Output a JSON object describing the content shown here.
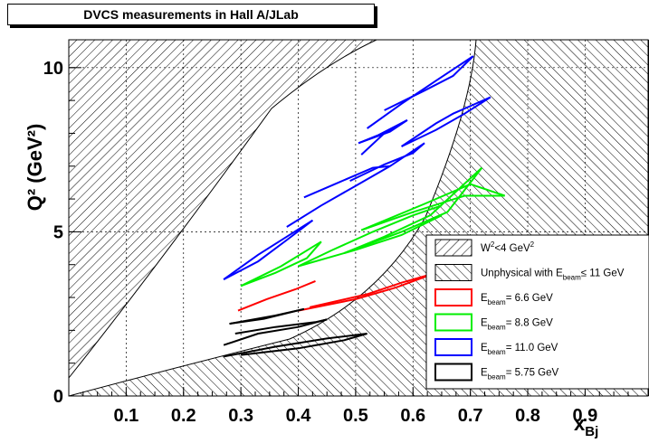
{
  "chart_data": {
    "type": "line",
    "title": "DVCS measurements in Hall A/JLab",
    "xlabel": "x_Bj",
    "ylabel": "Q² (GeV²)",
    "xlim": [
      0.0,
      1.0
    ],
    "ylim": [
      0,
      11
    ],
    "x_ticks": [
      "0.1",
      "0.2",
      "0.3",
      "0.4",
      "0.5",
      "0.6",
      "0.7",
      "0.8",
      "0.9"
    ],
    "y_ticks": [
      "0",
      "5",
      "10"
    ],
    "grid": true,
    "legend_position": "right",
    "legend": {
      "w2": {
        "main": "W",
        "sup": "2",
        "tail": "<4 GeV",
        "sup2": "2"
      },
      "unphys": {
        "main": "Unphysical with E",
        "sub": "beam",
        "tail": "≤ 11 GeV"
      },
      "series": [
        {
          "main": "E",
          "sub": "beam",
          "tail": "= 6.6 GeV",
          "color": "#ff0000"
        },
        {
          "main": "E",
          "sub": "beam",
          "tail": "= 8.8 GeV",
          "color": "#00ee00"
        },
        {
          "main": "E",
          "sub": "beam",
          "tail": "= 11.0 GeV",
          "color": "#0000ff"
        },
        {
          "main": "E",
          "sub": "beam",
          "tail": "= 5.75 GeV",
          "color": "#000000"
        }
      ]
    },
    "series": [
      {
        "color": "#ff0000",
        "segments": [
          [
            [
              0.295,
              2.6
            ],
            [
              0.345,
              2.95
            ],
            [
              0.395,
              3.25
            ],
            [
              0.43,
              3.5
            ]
          ],
          [
            [
              0.42,
              2.7
            ],
            [
              0.52,
              3.1
            ],
            [
              0.58,
              3.45
            ],
            [
              0.64,
              3.75
            ]
          ],
          [
            [
              0.4,
              2.6
            ],
            [
              0.5,
              2.95
            ],
            [
              0.57,
              3.3
            ],
            [
              0.64,
              3.75
            ]
          ]
        ]
      },
      {
        "color": "#00ee00",
        "segments": [
          [
            [
              0.3,
              3.35
            ],
            [
              0.36,
              3.75
            ],
            [
              0.415,
              4.2
            ],
            [
              0.44,
              4.7
            ]
          ],
          [
            [
              0.3,
              3.35
            ],
            [
              0.37,
              3.95
            ],
            [
              0.44,
              4.7
            ]
          ],
          [
            [
              0.4,
              3.95
            ],
            [
              0.46,
              4.45
            ],
            [
              0.53,
              5.0
            ],
            [
              0.6,
              5.5
            ],
            [
              0.65,
              5.8
            ]
          ],
          [
            [
              0.4,
              3.95
            ],
            [
              0.5,
              4.45
            ],
            [
              0.58,
              4.9
            ],
            [
              0.65,
              5.5
            ]
          ],
          [
            [
              0.48,
              4.35
            ],
            [
              0.55,
              4.85
            ],
            [
              0.63,
              5.5
            ],
            [
              0.72,
              6.95
            ]
          ],
          [
            [
              0.48,
              4.35
            ],
            [
              0.58,
              5.0
            ],
            [
              0.66,
              5.6
            ],
            [
              0.72,
              6.95
            ]
          ],
          [
            [
              0.51,
              5.05
            ],
            [
              0.6,
              5.6
            ],
            [
              0.69,
              6.1
            ],
            [
              0.76,
              6.1
            ]
          ],
          [
            [
              0.51,
              5.05
            ],
            [
              0.62,
              5.85
            ],
            [
              0.7,
              6.45
            ],
            [
              0.76,
              6.1
            ]
          ]
        ]
      },
      {
        "color": "#0000ff",
        "segments": [
          [
            [
              0.27,
              3.55
            ],
            [
              0.33,
              4.1
            ],
            [
              0.38,
              4.75
            ],
            [
              0.425,
              5.35
            ]
          ],
          [
            [
              0.27,
              3.55
            ],
            [
              0.33,
              4.3
            ],
            [
              0.38,
              4.85
            ],
            [
              0.425,
              5.35
            ]
          ],
          [
            [
              0.38,
              5.15
            ],
            [
              0.44,
              5.8
            ],
            [
              0.5,
              6.4
            ],
            [
              0.56,
              7.0
            ],
            [
              0.62,
              7.7
            ]
          ],
          [
            [
              0.41,
              6.05
            ],
            [
              0.47,
              6.5
            ],
            [
              0.53,
              6.95
            ],
            [
              0.56,
              7.0
            ]
          ],
          [
            [
              0.49,
              6.55
            ],
            [
              0.55,
              7.05
            ],
            [
              0.6,
              7.4
            ],
            [
              0.62,
              7.7
            ]
          ],
          [
            [
              0.505,
              7.7
            ],
            [
              0.56,
              8.05
            ],
            [
              0.59,
              8.4
            ]
          ],
          [
            [
              0.505,
              7.7
            ],
            [
              0.54,
              7.95
            ],
            [
              0.59,
              8.4
            ]
          ],
          [
            [
              0.51,
              7.35
            ],
            [
              0.55,
              8.0
            ],
            [
              0.59,
              8.4
            ]
          ],
          [
            [
              0.55,
              8.7
            ],
            [
              0.62,
              9.3
            ],
            [
              0.67,
              9.75
            ],
            [
              0.705,
              10.35
            ]
          ],
          [
            [
              0.52,
              8.15
            ],
            [
              0.58,
              8.9
            ],
            [
              0.64,
              9.6
            ],
            [
              0.705,
              10.35
            ]
          ],
          [
            [
              0.58,
              7.6
            ],
            [
              0.64,
              8.3
            ],
            [
              0.67,
              8.6
            ],
            [
              0.735,
              9.1
            ]
          ],
          [
            [
              0.58,
              7.6
            ],
            [
              0.64,
              8.1
            ],
            [
              0.69,
              8.6
            ],
            [
              0.735,
              9.1
            ]
          ]
        ]
      },
      {
        "color": "#000000",
        "segments": [
          [
            [
              0.28,
              2.2
            ],
            [
              0.36,
              2.45
            ],
            [
              0.41,
              2.65
            ]
          ],
          [
            [
              0.28,
              2.2
            ],
            [
              0.34,
              2.35
            ],
            [
              0.41,
              2.65
            ]
          ],
          [
            [
              0.27,
              1.55
            ],
            [
              0.33,
              1.9
            ],
            [
              0.4,
              2.1
            ],
            [
              0.45,
              2.33
            ]
          ],
          [
            [
              0.29,
              1.9
            ],
            [
              0.36,
              2.1
            ],
            [
              0.43,
              2.25
            ],
            [
              0.45,
              2.33
            ]
          ],
          [
            [
              0.27,
              1.2
            ],
            [
              0.36,
              1.5
            ],
            [
              0.45,
              1.75
            ],
            [
              0.52,
              1.9
            ]
          ],
          [
            [
              0.3,
              1.25
            ],
            [
              0.4,
              1.45
            ],
            [
              0.48,
              1.7
            ],
            [
              0.52,
              1.9
            ]
          ]
        ]
      }
    ]
  }
}
